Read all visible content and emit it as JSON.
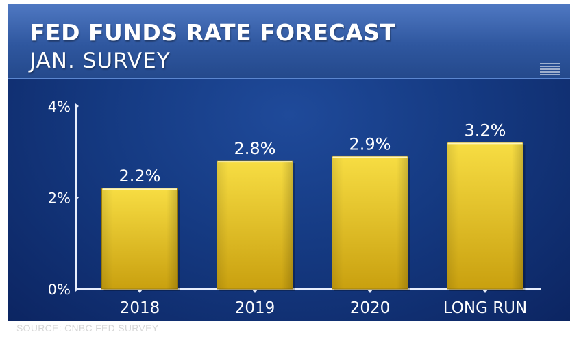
{
  "header": {
    "title": "FED FUNDS RATE FORECAST",
    "subtitle": "JAN. SURVEY"
  },
  "footer": {
    "source": "SOURCE: CNBC FED SURVEY"
  },
  "colors": {
    "bar_top": "#f7dd43",
    "bar_bottom": "#c9a00f",
    "axis": "#e8eefc",
    "text": "#ffffff"
  },
  "chart_data": {
    "type": "bar",
    "title": "FED FUNDS RATE FORECAST",
    "subtitle": "JAN. SURVEY",
    "categories": [
      "2018",
      "2019",
      "2020",
      "LONG RUN"
    ],
    "values": [
      2.2,
      2.8,
      2.9,
      3.2
    ],
    "value_labels": [
      "2.2%",
      "2.8%",
      "2.9%",
      "3.2%"
    ],
    "yticks": [
      0,
      2,
      4
    ],
    "ytick_labels": [
      "0%",
      "2%",
      "4%"
    ],
    "ylim": [
      0,
      4
    ],
    "xlabel": "",
    "ylabel": "",
    "grid": false,
    "legend": "none"
  }
}
